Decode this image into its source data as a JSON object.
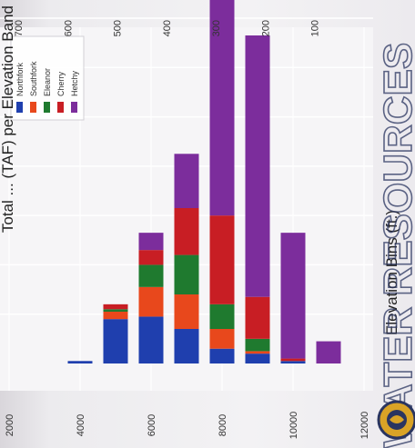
{
  "chart_data": {
    "type": "bar",
    "stacked": true,
    "orientation": "horizontal",
    "title": "Total ... (TAF) per Elevation Band",
    "title_partial": "",
    "xlabel": "Elevation Bins (ft.)",
    "ylabel": "",
    "categories": [
      2000,
      3000,
      4000,
      5000,
      6000,
      7000,
      8000,
      9000,
      10000,
      11000,
      12000
    ],
    "x_ticks": [
      2000,
      4000,
      6000,
      8000,
      10000,
      12000
    ],
    "y_ticks": [
      100,
      200,
      300,
      400,
      500,
      600,
      700
    ],
    "ylim": [
      0,
      700
    ],
    "series": [
      {
        "name": "Northfork",
        "color": "#1f3fae",
        "values": [
          0,
          0,
          5,
          90,
          95,
          70,
          30,
          20,
          5,
          0,
          0
        ]
      },
      {
        "name": "Southfork",
        "color": "#e8481c",
        "values": [
          0,
          0,
          0,
          15,
          60,
          70,
          40,
          5,
          0,
          0,
          0
        ]
      },
      {
        "name": "Eleanor",
        "color": "#1f7a2f",
        "values": [
          0,
          0,
          0,
          5,
          45,
          80,
          50,
          25,
          0,
          0,
          0
        ]
      },
      {
        "name": "Cherry",
        "color": "#c81e24",
        "values": [
          0,
          0,
          0,
          10,
          30,
          95,
          180,
          85,
          5,
          0,
          0
        ]
      },
      {
        "name": "Hetchy",
        "color": "#7c2d9c",
        "values": [
          0,
          0,
          0,
          0,
          35,
          110,
          440,
          530,
          255,
          45,
          0
        ]
      }
    ],
    "legend_position": "top-left",
    "grid": true,
    "watermark": "WATER RESOURCES"
  }
}
